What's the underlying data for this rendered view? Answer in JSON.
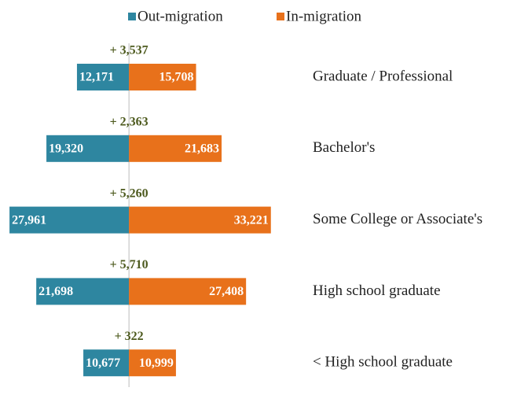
{
  "chart_data": {
    "type": "diverging-bar",
    "orientation": "horizontal",
    "categories": [
      "Graduate / Professional",
      "Bachelor's",
      "Some College or Associate's",
      "High school graduate",
      "< High school graduate"
    ],
    "series": [
      {
        "name": "Out-migration",
        "color": "#2e86a0",
        "values": [
          12171,
          19320,
          27961,
          21698,
          10677
        ],
        "value_labels": [
          "12,171",
          "19,320",
          "27,961",
          "21,698",
          "10,677"
        ]
      },
      {
        "name": "In-migration",
        "color": "#e8711b",
        "values": [
          15708,
          21683,
          33221,
          27408,
          10999
        ],
        "value_labels": [
          "15,708",
          "21,683",
          "33,221",
          "27,408",
          "10,999"
        ]
      }
    ],
    "annotations": [
      "+ 3,537",
      "+ 2,363",
      "+ 5,260",
      "+ 5,710",
      "+ 322"
    ],
    "annotation_color": "#4d5a1e",
    "xlim": [
      -30000,
      34000
    ]
  }
}
